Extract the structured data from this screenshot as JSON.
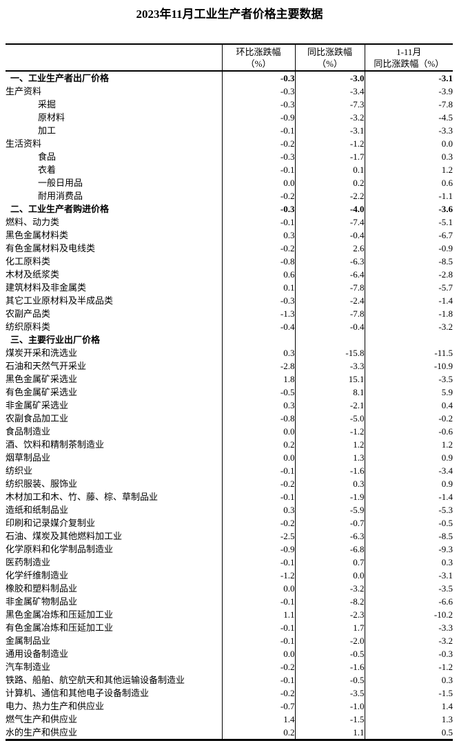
{
  "title": "2023年11月工业生产者价格主要数据",
  "colors": {
    "background": "#ffffff",
    "text": "#000000",
    "border": "#000000"
  },
  "table": {
    "header": {
      "label": "",
      "mom": {
        "line1": "环比涨跌幅",
        "line2": "（%）"
      },
      "yoy": {
        "line1": "同比涨跌幅",
        "line2": "（%）"
      },
      "ytd": {
        "line1": "1-11月",
        "line2": "同比涨跌幅（%）"
      }
    },
    "rows": [
      {
        "label": "一、工业生产者出厂价格",
        "level": "section",
        "mom": "-0.3",
        "yoy": "-3.0",
        "ytd": "-3.1"
      },
      {
        "label": "生产资料",
        "level": 1,
        "mom": "-0.3",
        "yoy": "-3.4",
        "ytd": "-3.9"
      },
      {
        "label": "采掘",
        "level": 2,
        "mom": "-0.3",
        "yoy": "-7.3",
        "ytd": "-7.8"
      },
      {
        "label": "原材料",
        "level": 2,
        "mom": "-0.9",
        "yoy": "-3.2",
        "ytd": "-4.5"
      },
      {
        "label": "加工",
        "level": 2,
        "mom": "-0.1",
        "yoy": "-3.1",
        "ytd": "-3.3"
      },
      {
        "label": "生活资料",
        "level": 1,
        "mom": "-0.2",
        "yoy": "-1.2",
        "ytd": "0.0"
      },
      {
        "label": "食品",
        "level": 2,
        "mom": "-0.3",
        "yoy": "-1.7",
        "ytd": "0.3"
      },
      {
        "label": "衣着",
        "level": 2,
        "mom": "-0.1",
        "yoy": "0.1",
        "ytd": "1.2"
      },
      {
        "label": "一般日用品",
        "level": 2,
        "mom": "0.0",
        "yoy": "0.2",
        "ytd": "0.6"
      },
      {
        "label": "耐用消费品",
        "level": 2,
        "mom": "-0.2",
        "yoy": "-2.2",
        "ytd": "-1.1"
      },
      {
        "label": "二、工业生产者购进价格",
        "level": "section",
        "mom": "-0.3",
        "yoy": "-4.0",
        "ytd": "-3.6"
      },
      {
        "label": "燃料、动力类",
        "level": 1,
        "mom": "-0.1",
        "yoy": "-7.4",
        "ytd": "-5.1"
      },
      {
        "label": "黑色金属材料类",
        "level": 1,
        "mom": "0.3",
        "yoy": "-0.4",
        "ytd": "-6.7"
      },
      {
        "label": "有色金属材料及电线类",
        "level": 1,
        "mom": "-0.2",
        "yoy": "2.6",
        "ytd": "-0.9"
      },
      {
        "label": "化工原料类",
        "level": 1,
        "mom": "-0.8",
        "yoy": "-6.3",
        "ytd": "-8.5"
      },
      {
        "label": "木材及纸浆类",
        "level": 1,
        "mom": "0.6",
        "yoy": "-6.4",
        "ytd": "-2.8"
      },
      {
        "label": "建筑材料及非金属类",
        "level": 1,
        "mom": "0.1",
        "yoy": "-7.8",
        "ytd": "-5.7"
      },
      {
        "label": "其它工业原材料及半成品类",
        "level": 1,
        "mom": "-0.3",
        "yoy": "-2.4",
        "ytd": "-1.4"
      },
      {
        "label": "农副产品类",
        "level": 1,
        "mom": "-1.3",
        "yoy": "-7.8",
        "ytd": "-1.8"
      },
      {
        "label": "纺织原料类",
        "level": 1,
        "mom": "-0.4",
        "yoy": "-0.4",
        "ytd": "-3.2"
      },
      {
        "label": "三、主要行业出厂价格",
        "level": "section",
        "mom": "",
        "yoy": "",
        "ytd": ""
      },
      {
        "label": "煤炭开采和洗选业",
        "level": 1,
        "mom": "0.3",
        "yoy": "-15.8",
        "ytd": "-11.5"
      },
      {
        "label": "石油和天然气开采业",
        "level": 1,
        "mom": "-2.8",
        "yoy": "-3.3",
        "ytd": "-10.9"
      },
      {
        "label": "黑色金属矿采选业",
        "level": 1,
        "mom": "1.8",
        "yoy": "15.1",
        "ytd": "-3.5"
      },
      {
        "label": "有色金属矿采选业",
        "level": 1,
        "mom": "-0.5",
        "yoy": "8.1",
        "ytd": "5.9"
      },
      {
        "label": "非金属矿采选业",
        "level": 1,
        "mom": "0.3",
        "yoy": "-2.1",
        "ytd": "0.4"
      },
      {
        "label": "农副食品加工业",
        "level": 1,
        "mom": "-0.8",
        "yoy": "-5.0",
        "ytd": "-0.2"
      },
      {
        "label": "食品制造业",
        "level": 1,
        "mom": "0.0",
        "yoy": "-1.2",
        "ytd": "-0.6"
      },
      {
        "label": "酒、饮料和精制茶制造业",
        "level": 1,
        "mom": "0.2",
        "yoy": "1.2",
        "ytd": "1.2"
      },
      {
        "label": "烟草制品业",
        "level": 1,
        "mom": "0.0",
        "yoy": "1.3",
        "ytd": "0.9"
      },
      {
        "label": "纺织业",
        "level": 1,
        "mom": "-0.1",
        "yoy": "-1.6",
        "ytd": "-3.4"
      },
      {
        "label": "纺织服装、服饰业",
        "level": 1,
        "mom": "-0.2",
        "yoy": "0.3",
        "ytd": "0.9"
      },
      {
        "label": "木材加工和木、竹、藤、棕、草制品业",
        "level": 1,
        "mom": "-0.1",
        "yoy": "-1.9",
        "ytd": "-1.4"
      },
      {
        "label": "造纸和纸制品业",
        "level": 1,
        "mom": "0.3",
        "yoy": "-5.9",
        "ytd": "-5.3"
      },
      {
        "label": "印刷和记录媒介复制业",
        "level": 1,
        "mom": "-0.2",
        "yoy": "-0.7",
        "ytd": "-0.5"
      },
      {
        "label": "石油、煤炭及其他燃料加工业",
        "level": 1,
        "mom": "-2.5",
        "yoy": "-6.3",
        "ytd": "-8.5"
      },
      {
        "label": "化学原料和化学制品制造业",
        "level": 1,
        "mom": "-0.9",
        "yoy": "-6.8",
        "ytd": "-9.3"
      },
      {
        "label": "医药制造业",
        "level": 1,
        "mom": "-0.1",
        "yoy": "0.7",
        "ytd": "0.3"
      },
      {
        "label": "化学纤维制造业",
        "level": 1,
        "mom": "-1.2",
        "yoy": "0.0",
        "ytd": "-3.1"
      },
      {
        "label": "橡胶和塑料制品业",
        "level": 1,
        "mom": "0.0",
        "yoy": "-3.2",
        "ytd": "-3.5"
      },
      {
        "label": "非金属矿物制品业",
        "level": 1,
        "mom": "-0.1",
        "yoy": "-8.2",
        "ytd": "-6.6"
      },
      {
        "label": "黑色金属冶炼和压延加工业",
        "level": 1,
        "mom": "1.1",
        "yoy": "-2.3",
        "ytd": "-10.2"
      },
      {
        "label": "有色金属冶炼和压延加工业",
        "level": 1,
        "mom": "-0.1",
        "yoy": "1.7",
        "ytd": "-3.3"
      },
      {
        "label": "金属制品业",
        "level": 1,
        "mom": "-0.1",
        "yoy": "-2.0",
        "ytd": "-3.2"
      },
      {
        "label": "通用设备制造业",
        "level": 1,
        "mom": "0.0",
        "yoy": "-0.5",
        "ytd": "-0.3"
      },
      {
        "label": "汽车制造业",
        "level": 1,
        "mom": "-0.2",
        "yoy": "-1.6",
        "ytd": "-1.2"
      },
      {
        "label": "铁路、船舶、航空航天和其他运输设备制造业",
        "level": 1,
        "mom": "-0.1",
        "yoy": "-0.5",
        "ytd": "0.3"
      },
      {
        "label": "计算机、通信和其他电子设备制造业",
        "level": 1,
        "mom": "-0.2",
        "yoy": "-3.5",
        "ytd": "-1.5"
      },
      {
        "label": "电力、热力生产和供应业",
        "level": 1,
        "mom": "-0.7",
        "yoy": "-1.0",
        "ytd": "1.4"
      },
      {
        "label": "燃气生产和供应业",
        "level": 1,
        "mom": "1.4",
        "yoy": "-1.5",
        "ytd": "1.3"
      },
      {
        "label": "水的生产和供应业",
        "level": 1,
        "mom": "0.2",
        "yoy": "1.1",
        "ytd": "0.5"
      }
    ]
  }
}
